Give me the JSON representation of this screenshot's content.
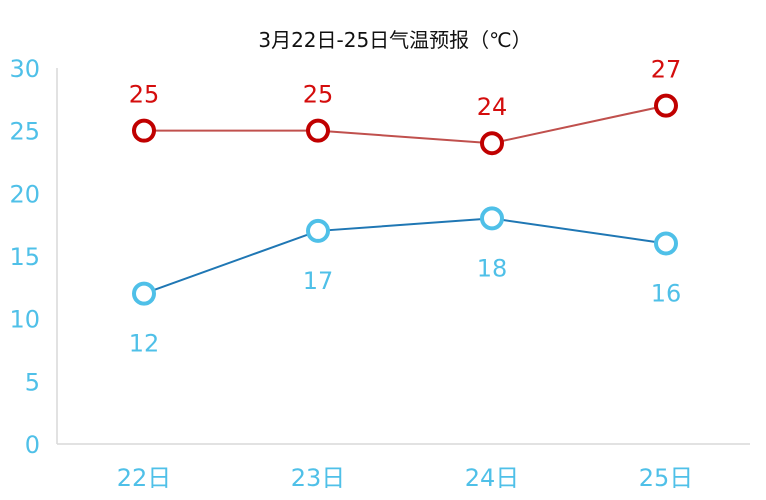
{
  "chart_data": {
    "type": "line",
    "title": "3月22日-25日气温预报（℃）",
    "xlabel": "",
    "ylabel": "",
    "categories": [
      "22日",
      "23日",
      "24日",
      "25日"
    ],
    "ylim": [
      0,
      30
    ],
    "yticks": [
      "0",
      "5",
      "10",
      "15",
      "20",
      "25",
      "30"
    ],
    "grid": false,
    "legend": "none",
    "series": [
      {
        "values": [
          25,
          25,
          24,
          27
        ],
        "line_color": "#c0504d",
        "marker_color": "#c00000",
        "label_color": "#d40d0d",
        "label_position": "above"
      },
      {
        "values": [
          12,
          17,
          18,
          16
        ],
        "line_color": "#1f77b4",
        "marker_color": "#4fc0e8",
        "label_color": "#4fc0e8",
        "label_position": "below"
      }
    ]
  }
}
